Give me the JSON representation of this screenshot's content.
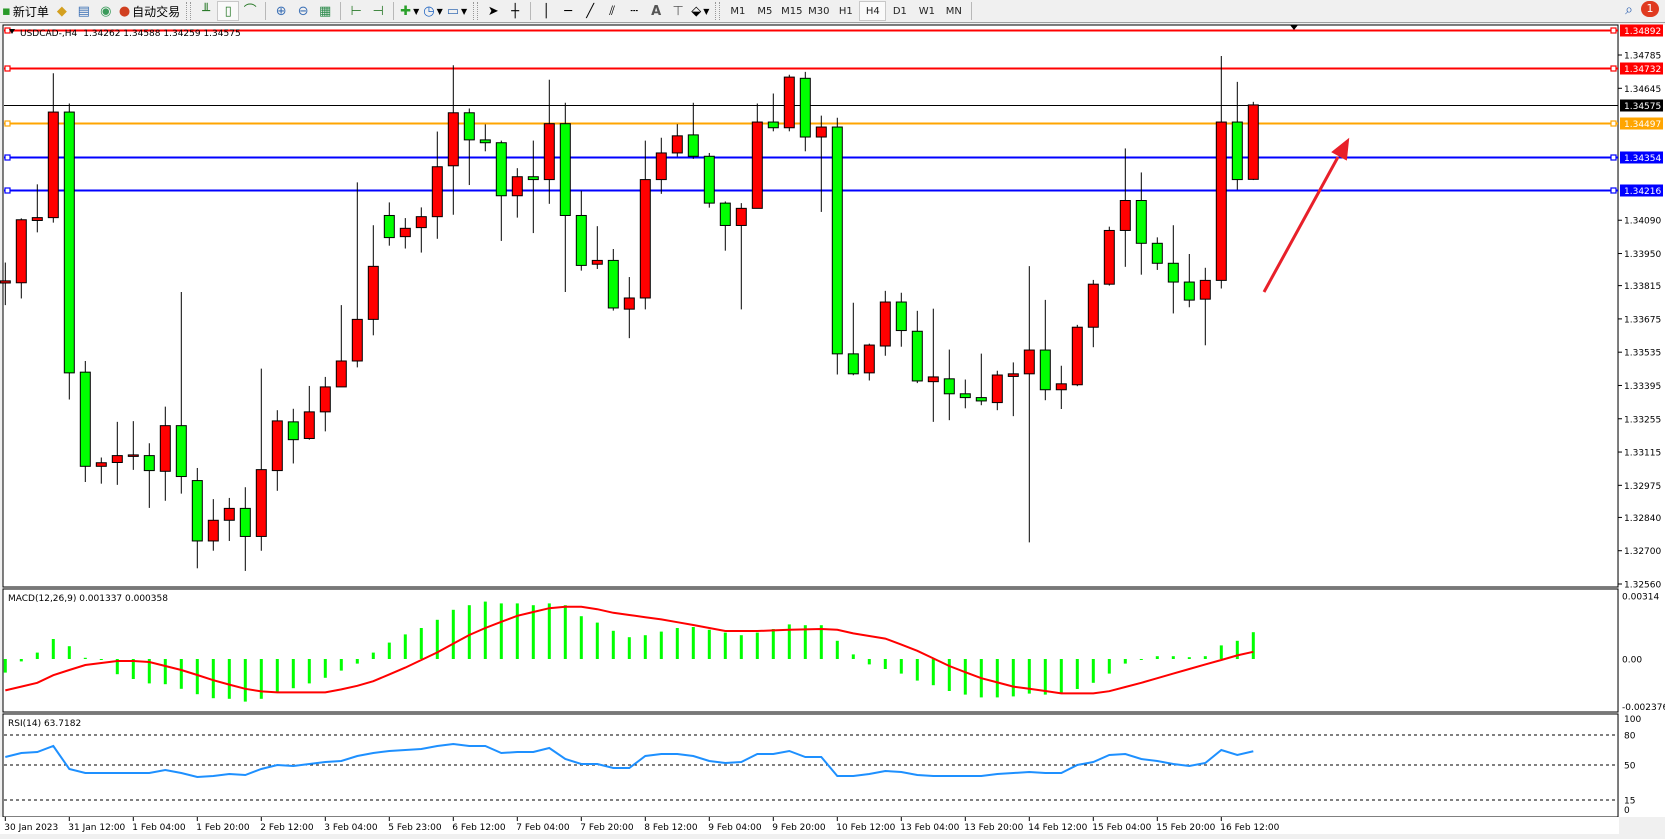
{
  "toolbar": {
    "new_order": "新订单",
    "auto_trading": "自动交易",
    "timeframes": [
      "M1",
      "M5",
      "M15",
      "M30",
      "H1",
      "H4",
      "D1",
      "W1",
      "MN"
    ],
    "active_timeframe": "H4",
    "notification_count": "1",
    "icons": [
      "new-order-icon",
      "market-watch-icon",
      "navigator-icon",
      "signals-icon",
      "auto-trading-icon",
      "bar-chart-icon",
      "candlestick-icon",
      "line-chart-icon",
      "zoom-in-icon",
      "zoom-out-icon",
      "tile-windows-icon",
      "auto-scroll-icon",
      "chart-shift-icon",
      "indicators-icon",
      "periods-icon",
      "templates-icon",
      "cursor-icon",
      "crosshair-icon",
      "vertical-line-icon",
      "horizontal-line-icon",
      "trendline-icon",
      "fibonacci-expansion-icon",
      "fibonacci-fan-icon",
      "text-icon",
      "text-label-icon",
      "arrows-icon",
      "search-icon",
      "notifications-icon"
    ]
  },
  "chart": {
    "symbol": "USDCAD-,H4",
    "ohlc": "1.34262 1.34588 1.34259 1.34575",
    "colors": {
      "bull": "#ff0000",
      "bear": "#00ff00",
      "wick": "#000000",
      "background": "#ffffff"
    },
    "price_ticks": [
      "1.34785",
      "1.34645",
      "1.34090",
      "1.33950",
      "1.33815",
      "1.33675",
      "1.33535",
      "1.33395",
      "1.33255",
      "1.33115",
      "1.32975",
      "1.32840",
      "1.32700",
      "1.32560"
    ],
    "levels": [
      {
        "price": "1.34892",
        "color": "#ff0000",
        "label_text": "#ffffff"
      },
      {
        "price": "1.34732",
        "color": "#ff0000",
        "label_text": "#ffffff"
      },
      {
        "price": "1.34575",
        "color": "#000000",
        "label_text": "#ffffff",
        "current": true
      },
      {
        "price": "1.34497",
        "color": "#ffa500",
        "label_text": "#ffffff"
      },
      {
        "price": "1.34354",
        "color": "#0000ff",
        "label_text": "#ffffff"
      },
      {
        "price": "1.34216",
        "color": "#0000ff",
        "label_text": "#ffffff"
      }
    ],
    "arrow_color": "#e8202a",
    "time_labels": [
      "30 Jan 2023",
      "31 Jan 12:00",
      "1 Feb 04:00",
      "1 Feb 20:00",
      "2 Feb 12:00",
      "3 Feb 04:00",
      "5 Feb 23:00",
      "6 Feb 12:00",
      "7 Feb 04:00",
      "7 Feb 20:00",
      "8 Feb 12:00",
      "9 Feb 04:00",
      "9 Feb 20:00",
      "10 Feb 12:00",
      "13 Feb 04:00",
      "13 Feb 20:00",
      "14 Feb 12:00",
      "15 Feb 04:00",
      "15 Feb 20:00",
      "16 Feb 12:00"
    ],
    "time_label_every_n_bars": 4
  },
  "chart_data": {
    "type": "candlestick",
    "ohlc_order": [
      "open",
      "high",
      "low",
      "close"
    ],
    "candles": [
      [
        1.33826,
        1.33912,
        1.33733,
        1.33835
      ],
      [
        1.33827,
        1.34098,
        1.33761,
        1.34092
      ],
      [
        1.34089,
        1.34241,
        1.34039,
        1.34101
      ],
      [
        1.34101,
        1.34708,
        1.3408,
        1.34545
      ],
      [
        1.34545,
        1.34581,
        1.33336,
        1.33448
      ],
      [
        1.33451,
        1.33498,
        1.32989,
        1.33055
      ],
      [
        1.33055,
        1.33092,
        1.32982,
        1.3307
      ],
      [
        1.33071,
        1.33242,
        1.32977,
        1.331
      ],
      [
        1.33103,
        1.33245,
        1.3304,
        1.33103
      ],
      [
        1.331,
        1.33152,
        1.3288,
        1.33037
      ],
      [
        1.33034,
        1.33306,
        1.3291,
        1.33226
      ],
      [
        1.33226,
        1.33788,
        1.3294,
        1.33012
      ],
      [
        1.32995,
        1.33048,
        1.32626,
        1.32741
      ],
      [
        1.32741,
        1.32917,
        1.327,
        1.32828
      ],
      [
        1.32828,
        1.32922,
        1.32741,
        1.32878
      ],
      [
        1.32878,
        1.32967,
        1.32615,
        1.3276
      ],
      [
        1.3276,
        1.33466,
        1.327,
        1.33041
      ],
      [
        1.33037,
        1.33291,
        1.32952,
        1.33246
      ],
      [
        1.33242,
        1.33297,
        1.33067,
        1.33167
      ],
      [
        1.33172,
        1.33393,
        1.33167,
        1.33284
      ],
      [
        1.33284,
        1.33431,
        1.33202,
        1.33389
      ],
      [
        1.33389,
        1.33733,
        1.33389,
        1.33498
      ],
      [
        1.33498,
        1.34249,
        1.33471,
        1.33673
      ],
      [
        1.33673,
        1.34069,
        1.33606,
        1.33896
      ],
      [
        1.3411,
        1.34165,
        1.33983,
        1.34017
      ],
      [
        1.34021,
        1.34099,
        1.33971,
        1.34056
      ],
      [
        1.34059,
        1.34144,
        1.33954,
        1.34105
      ],
      [
        1.34105,
        1.34463,
        1.34012,
        1.34315
      ],
      [
        1.34319,
        1.34742,
        1.34113,
        1.34542
      ],
      [
        1.34542,
        1.3456,
        1.34238,
        1.34428
      ],
      [
        1.34428,
        1.34493,
        1.3438,
        1.34416
      ],
      [
        1.34416,
        1.34425,
        1.34003,
        1.34193
      ],
      [
        1.34193,
        1.34309,
        1.34101,
        1.34273
      ],
      [
        1.34273,
        1.34425,
        1.34036,
        1.34261
      ],
      [
        1.34261,
        1.34681,
        1.34159,
        1.34496
      ],
      [
        1.34496,
        1.34584,
        1.33788,
        1.3411
      ],
      [
        1.3411,
        1.34214,
        1.33878,
        1.339
      ],
      [
        1.33905,
        1.34065,
        1.33885,
        1.33921
      ],
      [
        1.33921,
        1.33969,
        1.3371,
        1.33721
      ],
      [
        1.33716,
        1.33851,
        1.33594,
        1.33763
      ],
      [
        1.33763,
        1.34425,
        1.33715,
        1.34261
      ],
      [
        1.34261,
        1.34437,
        1.34201,
        1.34373
      ],
      [
        1.34373,
        1.34494,
        1.34358,
        1.34445
      ],
      [
        1.34449,
        1.34584,
        1.34348,
        1.34359
      ],
      [
        1.34359,
        1.34373,
        1.34143,
        1.34162
      ],
      [
        1.34162,
        1.34169,
        1.33962,
        1.34068
      ],
      [
        1.34068,
        1.34162,
        1.33715,
        1.3414
      ],
      [
        1.3414,
        1.34581,
        1.3414,
        1.34503
      ],
      [
        1.34503,
        1.34623,
        1.34464,
        1.34479
      ],
      [
        1.34479,
        1.34702,
        1.34464,
        1.34692
      ],
      [
        1.34687,
        1.34714,
        1.3438,
        1.3444
      ],
      [
        1.3444,
        1.3453,
        1.34125,
        1.34482
      ],
      [
        1.34482,
        1.34521,
        1.33441,
        1.33528
      ],
      [
        1.33528,
        1.33743,
        1.33438,
        1.33444
      ],
      [
        1.33448,
        1.33571,
        1.33416,
        1.33565
      ],
      [
        1.33561,
        1.33793,
        1.3352,
        1.33746
      ],
      [
        1.33746,
        1.33785,
        1.33558,
        1.33626
      ],
      [
        1.33623,
        1.33709,
        1.33405,
        1.33414
      ],
      [
        1.33411,
        1.33718,
        1.33242,
        1.33431
      ],
      [
        1.33423,
        1.33546,
        1.33249,
        1.3336
      ],
      [
        1.3336,
        1.3342,
        1.33299,
        1.33344
      ],
      [
        1.33344,
        1.33529,
        1.33312,
        1.3333
      ],
      [
        1.33323,
        1.33457,
        1.33291,
        1.33439
      ],
      [
        1.33433,
        1.33492,
        1.33266,
        1.33444
      ],
      [
        1.33444,
        1.33897,
        1.32735,
        1.33544
      ],
      [
        1.33544,
        1.33755,
        1.33333,
        1.33377
      ],
      [
        1.33377,
        1.33478,
        1.33296,
        1.33402
      ],
      [
        1.33398,
        1.3365,
        1.33392,
        1.3364
      ],
      [
        1.3364,
        1.33839,
        1.33556,
        1.33821
      ],
      [
        1.33821,
        1.34063,
        1.33815,
        1.34047
      ],
      [
        1.34047,
        1.34392,
        1.33894,
        1.34173
      ],
      [
        1.34173,
        1.34291,
        1.33861,
        1.33993
      ],
      [
        1.33993,
        1.34018,
        1.33881,
        1.33909
      ],
      [
        1.33909,
        1.34069,
        1.33698,
        1.3383
      ],
      [
        1.3383,
        1.33948,
        1.33724,
        1.33754
      ],
      [
        1.33758,
        1.3389,
        1.33564,
        1.33837
      ],
      [
        1.33837,
        1.34781,
        1.33803,
        1.34503
      ],
      [
        1.34503,
        1.34672,
        1.34219,
        1.34261
      ],
      [
        1.34262,
        1.34588,
        1.34259,
        1.34575
      ]
    ],
    "yaxis_range": [
      1.3256,
      1.34892
    ],
    "macd": {
      "label": "MACD(12,26,9) 0.001337 0.000358",
      "axis_labels": [
        "0.00314",
        "0.00",
        "-0.002376"
      ],
      "range": [
        -0.002376,
        0.00314
      ],
      "histogram_color": "#00ff00",
      "signal_color": "#ff0000",
      "histogram": [
        -0.00068,
        -0.00012,
        0.00032,
        0.001,
        0.00064,
        6e-05,
        -5e-05,
        -0.00076,
        -0.001,
        -0.00122,
        -0.00126,
        -0.00149,
        -0.00176,
        -0.00196,
        -0.00199,
        -0.00213,
        -0.00199,
        -0.00164,
        -0.00146,
        -0.00122,
        -0.00094,
        -0.00058,
        -0.00023,
        0.00032,
        0.00082,
        0.00123,
        0.00155,
        0.00196,
        0.00246,
        0.00269,
        0.00287,
        0.00278,
        0.00278,
        0.00269,
        0.00278,
        0.00269,
        0.00214,
        0.00182,
        0.00141,
        0.00109,
        0.00119,
        0.00137,
        0.00155,
        0.0016,
        0.00146,
        0.00132,
        0.00119,
        0.00132,
        0.0015,
        0.00173,
        0.00169,
        0.00169,
        0.00091,
        0.00023,
        -0.00027,
        -0.0005,
        -0.00073,
        -0.00108,
        -0.00131,
        -0.0016,
        -0.00178,
        -0.00192,
        -0.00192,
        -0.00187,
        -0.00173,
        -0.00178,
        -0.00169,
        -0.0015,
        -0.00119,
        -0.00073,
        -0.00023,
        -3e-05,
        0.00014,
        0.00014,
        9e-05,
        0.00014,
        0.00068,
        0.00091,
        0.00134
      ],
      "signal": [
        -0.00157,
        -0.00138,
        -0.00119,
        -0.00081,
        -0.00055,
        -0.0003,
        -0.0002,
        -0.0001,
        -0.0001,
        -0.00015,
        -0.00035,
        -0.00055,
        -0.0008,
        -0.00106,
        -0.00128,
        -0.00149,
        -0.00162,
        -0.00167,
        -0.00167,
        -0.00167,
        -0.00167,
        -0.00152,
        -0.00134,
        -0.00111,
        -0.00077,
        -0.00043,
        -5e-05,
        0.00033,
        0.00077,
        0.0012,
        0.00155,
        0.00186,
        0.00216,
        0.00235,
        0.00254,
        0.00261,
        0.00261,
        0.00249,
        0.00231,
        0.0022,
        0.00209,
        0.00198,
        0.00184,
        0.0017,
        0.00155,
        0.0014,
        0.0014,
        0.0014,
        0.00143,
        0.00146,
        0.00148,
        0.0015,
        0.00146,
        0.00128,
        0.00115,
        0.00102,
        0.00072,
        0.00041,
        3e-05,
        -0.00035,
        -0.00066,
        -0.00096,
        -0.00117,
        -0.00138,
        -0.00149,
        -0.0016,
        -0.00172,
        -0.00172,
        -0.00172,
        -0.00161,
        -0.0014,
        -0.00119,
        -0.00096,
        -0.00073,
        -0.0005,
        -0.00027,
        -5e-05,
        0.00018,
        0.00036
      ]
    },
    "rsi": {
      "label": "RSI(14) 63.7182",
      "axis_labels": [
        "100",
        "80",
        "50",
        "15",
        "0"
      ],
      "levels": [
        80,
        50,
        15
      ],
      "range": [
        0,
        100
      ],
      "color": "#1e90ff",
      "values": [
        58,
        62,
        63,
        69,
        46,
        42,
        42,
        42,
        42,
        42,
        45,
        42,
        38,
        39,
        41,
        40,
        46,
        50,
        49,
        51,
        53,
        54,
        59,
        62,
        64,
        65,
        66,
        69,
        71,
        69,
        69,
        62,
        63,
        63,
        67,
        56,
        51,
        51,
        47,
        47,
        59,
        61,
        61,
        59,
        54,
        52,
        53,
        61,
        61,
        64,
        58,
        58,
        39,
        39,
        41,
        44,
        43,
        40,
        39,
        39,
        39,
        39,
        41,
        42,
        43,
        42,
        42,
        50,
        53,
        60,
        61,
        56,
        54,
        51,
        49,
        52,
        65,
        60,
        63.7182
      ]
    }
  }
}
